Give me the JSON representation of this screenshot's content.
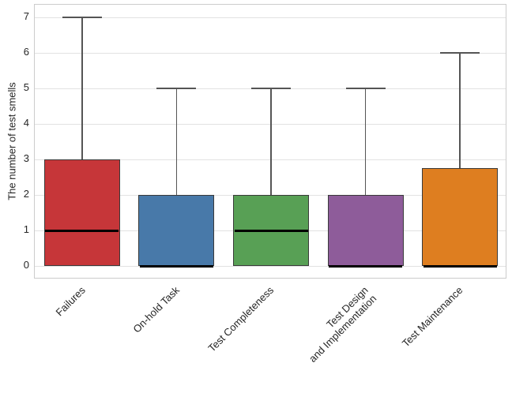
{
  "figure": {
    "background": "#ffffff",
    "grid_color": "#e2e2e2",
    "spine_color": "#cccccc",
    "text_color": "#262626"
  },
  "chart_data": {
    "type": "boxplot",
    "title": "",
    "xlabel": "",
    "ylabel": "The number of test smells",
    "ylim": [
      -0.35,
      7.35
    ],
    "yticks": [
      0,
      1,
      2,
      3,
      4,
      5,
      6,
      7
    ],
    "grid": true,
    "categories": [
      "Failures",
      "On-hold Task",
      "Test Completeness",
      "Test Design\nand Implementation",
      "Test Maintenance"
    ],
    "boxes": [
      {
        "category": "Failures",
        "q1": 0,
        "median": 1,
        "q3": 3,
        "whisker_low": 0,
        "whisker_high": 7,
        "fill_color": "#c63639"
      },
      {
        "category": "On-hold Task",
        "q1": 0,
        "median": 0,
        "q3": 2,
        "whisker_low": 0,
        "whisker_high": 5,
        "fill_color": "#4879a9"
      },
      {
        "category": "Test Completeness",
        "q1": 0,
        "median": 1,
        "q3": 2,
        "whisker_low": 0,
        "whisker_high": 5,
        "fill_color": "#58a055"
      },
      {
        "category": "Test Design\nand Implementation",
        "q1": 0,
        "median": 0,
        "q3": 2,
        "whisker_low": 0,
        "whisker_high": 5,
        "fill_color": "#8e5c9a"
      },
      {
        "category": "Test Maintenance",
        "q1": 0,
        "median": 0,
        "q3": 2.75,
        "whisker_low": 0,
        "whisker_high": 6,
        "fill_color": "#de7e20"
      }
    ],
    "style": {
      "median_color": "#000000",
      "box_edge_color": "#3a3a3a",
      "whisker_color": "#555555"
    }
  }
}
